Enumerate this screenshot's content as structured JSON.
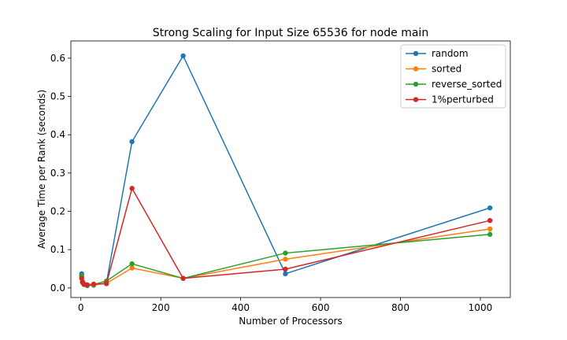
{
  "chart_data": {
    "type": "line",
    "title": "Strong Scaling for Input Size 65536 for node main",
    "xlabel": "Number of Processors",
    "ylabel": "Average Time per Rank (seconds)",
    "xlim": [
      -25,
      1075
    ],
    "ylim": [
      -0.025,
      0.645
    ],
    "xticks": [
      0,
      200,
      400,
      600,
      800,
      1000
    ],
    "yticks": [
      0.0,
      0.1,
      0.2,
      0.3,
      0.4,
      0.5,
      0.6
    ],
    "grid": false,
    "legend_position": "top-right",
    "x": [
      2,
      4,
      8,
      16,
      32,
      64,
      128,
      256,
      512,
      1024
    ],
    "series": [
      {
        "name": "random",
        "color": "#1f77b4",
        "values": [
          0.037,
          0.016,
          0.009,
          0.006,
          0.007,
          0.013,
          0.382,
          0.606,
          0.037,
          0.209
        ]
      },
      {
        "name": "sorted",
        "color": "#ff7f0e",
        "values": [
          0.03,
          0.015,
          0.01,
          0.007,
          0.008,
          0.012,
          0.052,
          0.025,
          0.075,
          0.154
        ]
      },
      {
        "name": "reverse_sorted",
        "color": "#2ca02c",
        "values": [
          0.032,
          0.014,
          0.009,
          0.007,
          0.009,
          0.018,
          0.063,
          0.025,
          0.091,
          0.14
        ]
      },
      {
        "name": "1%perturbed",
        "color": "#d62728",
        "values": [
          0.025,
          0.016,
          0.01,
          0.008,
          0.01,
          0.011,
          0.26,
          0.025,
          0.049,
          0.176
        ]
      }
    ]
  }
}
